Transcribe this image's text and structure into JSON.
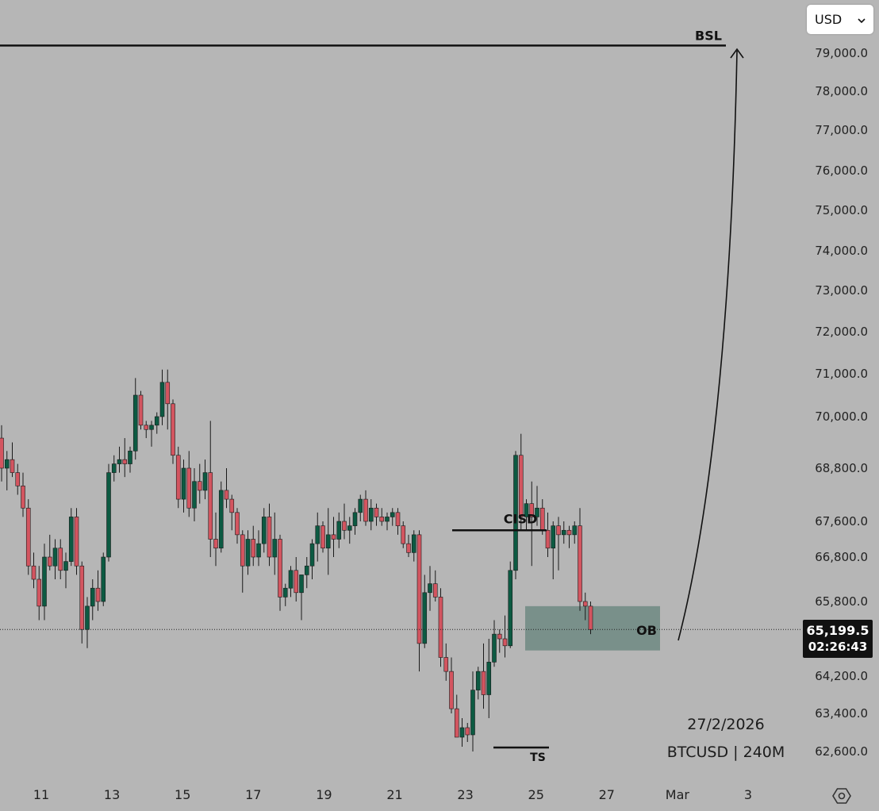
{
  "currency_selector": {
    "label": "USD",
    "chevron": "chevron-down-icon"
  },
  "price_badge": {
    "price": "65,199.5",
    "countdown": "02:26:43"
  },
  "footer": {
    "date": "27/2/2026",
    "symbol_timeframe": "BTCUSD | 240M"
  },
  "settings_icon": "gear-icon",
  "colors": {
    "background": "#b6b6b6",
    "up": "#0c5a42",
    "down": "#d35560",
    "order_block": "#6f8a82",
    "line": "#111111"
  },
  "chart_data": {
    "type": "candlestick",
    "symbol": "BTCUSD",
    "timeframe": "240M",
    "ylim": [
      62200,
      79700
    ],
    "y_ticks": [
      {
        "value": 79000,
        "label": "79,000.0"
      },
      {
        "value": 78000,
        "label": "78,000.0"
      },
      {
        "value": 77000,
        "label": "77,000.0"
      },
      {
        "value": 76000,
        "label": "76,000.0"
      },
      {
        "value": 75000,
        "label": "75,000.0"
      },
      {
        "value": 74000,
        "label": "74,000.0"
      },
      {
        "value": 73000,
        "label": "73,000.0"
      },
      {
        "value": 72000,
        "label": "72,000.0"
      },
      {
        "value": 71000,
        "label": "71,000.0"
      },
      {
        "value": 70000,
        "label": "70,000.0"
      },
      {
        "value": 68800,
        "label": "68,800.0"
      },
      {
        "value": 67600,
        "label": "67,600.0"
      },
      {
        "value": 66800,
        "label": "66,800.0"
      },
      {
        "value": 65800,
        "label": "65,800.0"
      },
      {
        "value": 64200,
        "label": "64,200.0"
      },
      {
        "value": 63400,
        "label": "63,400.0"
      },
      {
        "value": 62600,
        "label": "62,600.0"
      }
    ],
    "x_ticks": [
      "11",
      "13",
      "15",
      "17",
      "19",
      "21",
      "23",
      "25",
      "27",
      "Mar",
      "3"
    ],
    "last_price": 65199.5,
    "annotations": {
      "bsl": {
        "label": "BSL",
        "price": 79200
      },
      "cisd": {
        "label": "CISD",
        "price": 67400
      },
      "ts": {
        "label": "TS",
        "price": 62600
      },
      "ob": {
        "label": "OB",
        "low": 64750,
        "high": 65700
      }
    },
    "candles": [
      [
        69500,
        69800,
        68500,
        68800
      ],
      [
        68800,
        69200,
        68300,
        69000
      ],
      [
        69000,
        69400,
        68600,
        68700
      ],
      [
        68700,
        68900,
        68200,
        68400
      ],
      [
        68400,
        68700,
        67700,
        67900
      ],
      [
        67900,
        68100,
        66400,
        66600
      ],
      [
        66600,
        66900,
        66100,
        66300
      ],
      [
        66300,
        66600,
        65400,
        65700
      ],
      [
        65700,
        67100,
        65400,
        66800
      ],
      [
        66800,
        67300,
        66500,
        66600
      ],
      [
        66600,
        67200,
        66300,
        67000
      ],
      [
        67000,
        67200,
        66300,
        66500
      ],
      [
        66500,
        66900,
        66100,
        66700
      ],
      [
        66700,
        67900,
        66600,
        67700
      ],
      [
        67700,
        67900,
        66400,
        66600
      ],
      [
        66600,
        66700,
        64900,
        65200
      ],
      [
        65200,
        65900,
        64800,
        65700
      ],
      [
        65700,
        66300,
        65400,
        66100
      ],
      [
        66100,
        66500,
        65600,
        65800
      ],
      [
        65800,
        66900,
        65700,
        66800
      ],
      [
        66800,
        68900,
        66700,
        68700
      ],
      [
        68700,
        69100,
        68500,
        68900
      ],
      [
        68900,
        69300,
        68700,
        69000
      ],
      [
        69000,
        69500,
        68600,
        68900
      ],
      [
        68900,
        69300,
        68700,
        69200
      ],
      [
        69200,
        70900,
        69000,
        70500
      ],
      [
        70500,
        70600,
        69700,
        69800
      ],
      [
        69800,
        69900,
        69500,
        69700
      ],
      [
        69700,
        69900,
        69300,
        69800
      ],
      [
        69800,
        70100,
        69600,
        70000
      ],
      [
        70000,
        71100,
        69800,
        70800
      ],
      [
        70800,
        71100,
        69700,
        70300
      ],
      [
        70300,
        70400,
        68900,
        69100
      ],
      [
        69100,
        69300,
        67900,
        68100
      ],
      [
        68100,
        69000,
        67800,
        68800
      ],
      [
        68800,
        69200,
        67700,
        67900
      ],
      [
        67900,
        68800,
        67600,
        68500
      ],
      [
        68500,
        68900,
        68000,
        68300
      ],
      [
        68300,
        69000,
        68100,
        68700
      ],
      [
        68700,
        69900,
        66800,
        67200
      ],
      [
        67200,
        67800,
        66600,
        67000
      ],
      [
        67000,
        68500,
        66900,
        68300
      ],
      [
        68300,
        68800,
        67900,
        68100
      ],
      [
        68100,
        68200,
        67400,
        67800
      ],
      [
        67800,
        67900,
        67100,
        67300
      ],
      [
        67300,
        67400,
        66000,
        66600
      ],
      [
        66600,
        67400,
        66400,
        67200
      ],
      [
        67200,
        67500,
        66600,
        66800
      ],
      [
        66800,
        67400,
        66600,
        67100
      ],
      [
        67100,
        67900,
        66900,
        67700
      ],
      [
        67700,
        68000,
        66600,
        66800
      ],
      [
        66800,
        67800,
        66400,
        67200
      ],
      [
        67200,
        67300,
        65600,
        65900
      ],
      [
        65900,
        66200,
        65700,
        66100
      ],
      [
        66100,
        66600,
        65900,
        66500
      ],
      [
        66500,
        66800,
        65800,
        66000
      ],
      [
        66000,
        66400,
        65400,
        66400
      ],
      [
        66400,
        66800,
        66100,
        66600
      ],
      [
        66600,
        67200,
        66300,
        67100
      ],
      [
        67100,
        67800,
        66700,
        67500
      ],
      [
        67500,
        67600,
        66900,
        67000
      ],
      [
        67000,
        67900,
        66400,
        67300
      ],
      [
        67300,
        67700,
        66800,
        67200
      ],
      [
        67200,
        67800,
        67000,
        67600
      ],
      [
        67600,
        68000,
        67200,
        67400
      ],
      [
        67400,
        67700,
        67100,
        67500
      ],
      [
        67500,
        67900,
        67300,
        67800
      ],
      [
        67800,
        68200,
        67600,
        68100
      ],
      [
        68100,
        68300,
        67500,
        67600
      ],
      [
        67600,
        68100,
        67400,
        67900
      ],
      [
        67900,
        68000,
        67500,
        67700
      ],
      [
        67700,
        67900,
        67500,
        67600
      ],
      [
        67600,
        67800,
        67400,
        67700
      ],
      [
        67700,
        67900,
        67500,
        67800
      ],
      [
        67800,
        67900,
        67300,
        67500
      ],
      [
        67500,
        67600,
        67000,
        67100
      ],
      [
        67100,
        67300,
        66800,
        66900
      ],
      [
        66900,
        67400,
        66700,
        67300
      ],
      [
        67300,
        67400,
        64300,
        64900
      ],
      [
        64900,
        66400,
        64800,
        66000
      ],
      [
        66000,
        66600,
        65600,
        66200
      ],
      [
        66200,
        66500,
        65800,
        65900
      ],
      [
        65900,
        66100,
        64400,
        64600
      ],
      [
        64600,
        64900,
        64100,
        64300
      ],
      [
        64300,
        64600,
        63400,
        63500
      ],
      [
        63500,
        63800,
        62900,
        62900
      ],
      [
        62900,
        63300,
        62700,
        63100
      ],
      [
        63100,
        63200,
        62800,
        62950
      ],
      [
        62950,
        64300,
        62600,
        63900
      ],
      [
        63900,
        64400,
        63700,
        64300
      ],
      [
        64300,
        64900,
        63500,
        63800
      ],
      [
        63800,
        65000,
        63300,
        64500
      ],
      [
        64500,
        65400,
        64400,
        65100
      ],
      [
        65100,
        65200,
        64700,
        65000
      ],
      [
        65000,
        65500,
        64600,
        64850
      ],
      [
        64850,
        66700,
        64800,
        66500
      ],
      [
        66500,
        69200,
        66300,
        69100
      ],
      [
        69100,
        69600,
        67400,
        67700
      ],
      [
        67700,
        68100,
        67400,
        68000
      ],
      [
        68000,
        68500,
        66600,
        67700
      ],
      [
        67700,
        68400,
        67500,
        67900
      ],
      [
        67900,
        68100,
        67300,
        67400
      ],
      [
        67400,
        67800,
        66800,
        67000
      ],
      [
        67000,
        67600,
        66300,
        67500
      ],
      [
        67500,
        67700,
        66500,
        67300
      ],
      [
        67300,
        67600,
        67100,
        67400
      ],
      [
        67400,
        67500,
        67000,
        67300
      ],
      [
        67300,
        67600,
        67100,
        67500
      ],
      [
        67500,
        67900,
        65600,
        65800
      ],
      [
        65800,
        66000,
        65400,
        65700
      ],
      [
        65700,
        65800,
        65100,
        65199.5
      ]
    ]
  }
}
